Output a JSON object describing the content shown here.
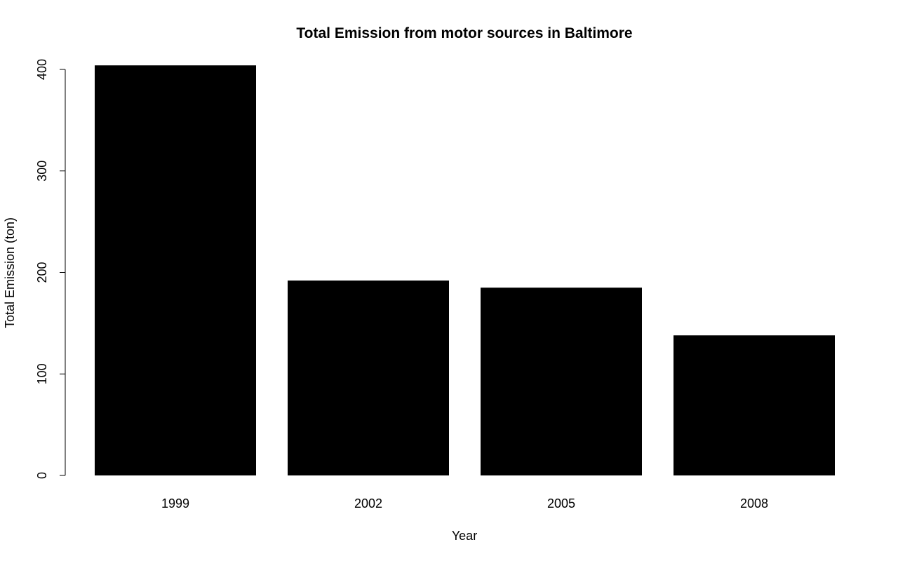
{
  "chart_data": {
    "type": "bar",
    "title": "Total Emission from motor sources in Baltimore",
    "xlabel": "Year",
    "ylabel": "Total Emission (ton)",
    "categories": [
      "1999",
      "2002",
      "2005",
      "2008"
    ],
    "values": [
      404,
      192,
      185,
      138
    ],
    "ylim": [
      0,
      400
    ],
    "yticks": [
      0,
      100,
      200,
      300,
      400
    ],
    "grid": false,
    "legend": "none",
    "bar_color": "#000000"
  }
}
